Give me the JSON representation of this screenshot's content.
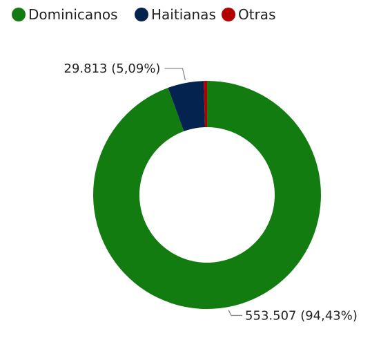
{
  "chart_data": {
    "type": "pie",
    "donut": true,
    "title": "",
    "legend_position": "top-left",
    "slices": [
      {
        "name": "Dominicanos",
        "value": 553507,
        "percent": 94.43,
        "label": "553.507 (94,43%)",
        "color": "#127c10"
      },
      {
        "name": "Haitianas",
        "value": 29813,
        "percent": 5.09,
        "label": "29.813 (5,09%)",
        "color": "#05234f"
      },
      {
        "name": "Otras",
        "value": 2814,
        "percent": 0.48,
        "label": "",
        "color": "#b30000"
      }
    ]
  }
}
